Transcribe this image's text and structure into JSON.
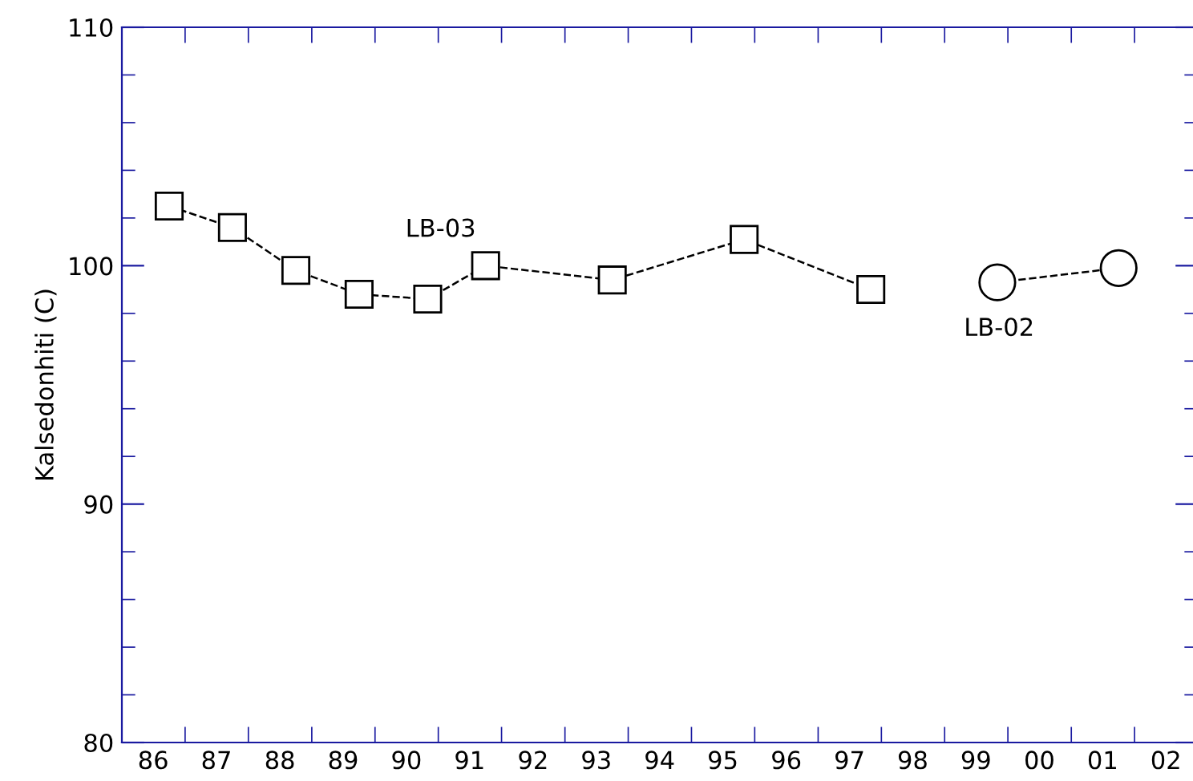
{
  "chart_data": {
    "type": "line",
    "ylabel": "Kalsedonhiti (C)",
    "series": [
      {
        "name": "LB-03",
        "color": "#000000",
        "marker": "square",
        "x": [
          "1986-10",
          "1987-10",
          "1988-10",
          "1989-10",
          "1990-11",
          "1991-10",
          "1993-10",
          "1995-11",
          "1997-11"
        ],
        "values": [
          102.5,
          101.6,
          99.8,
          98.8,
          98.6,
          100.0,
          99.4,
          101.1,
          99.0
        ]
      },
      {
        "name": "LB-02",
        "color": "#000000",
        "marker": "circle",
        "x": [
          "1999-11",
          "2001-10"
        ],
        "values": [
          99.3,
          99.9
        ]
      }
    ],
    "line_style": "dashed",
    "xlim": [
      "1986",
      "2003"
    ],
    "xticks": [
      {
        "value": "1986",
        "label": null
      },
      {
        "value": "1986-07",
        "label": "86"
      },
      {
        "value": "1987",
        "label": null
      },
      {
        "value": "1987-07",
        "label": "87"
      },
      {
        "value": "1988",
        "label": null
      },
      {
        "value": "1988-07",
        "label": "88"
      },
      {
        "value": "1989",
        "label": null
      },
      {
        "value": "1989-07",
        "label": "89"
      },
      {
        "value": "1990",
        "label": null
      },
      {
        "value": "1990-07",
        "label": "90"
      },
      {
        "value": "1991",
        "label": null
      },
      {
        "value": "1991-07",
        "label": "91"
      },
      {
        "value": "1992",
        "label": null
      },
      {
        "value": "1992-07",
        "label": "92"
      },
      {
        "value": "1993",
        "label": null
      },
      {
        "value": "1993-07",
        "label": "93"
      },
      {
        "value": "1994",
        "label": null
      },
      {
        "value": "1994-07",
        "label": "94"
      },
      {
        "value": "1995",
        "label": null
      },
      {
        "value": "1995-07",
        "label": "95"
      },
      {
        "value": "1996",
        "label": null
      },
      {
        "value": "1996-07",
        "label": "96"
      },
      {
        "value": "1997",
        "label": null
      },
      {
        "value": "1997-07",
        "label": "97"
      },
      {
        "value": "1998",
        "label": null
      },
      {
        "value": "1998-07",
        "label": "98"
      },
      {
        "value": "1999",
        "label": null
      },
      {
        "value": "1999-07",
        "label": "99"
      },
      {
        "value": "2000",
        "label": null
      },
      {
        "value": "2000-07",
        "label": "00"
      },
      {
        "value": "2001",
        "label": null
      },
      {
        "value": "2001-07",
        "label": "01"
      },
      {
        "value": "2002",
        "label": null
      },
      {
        "value": "2002-07",
        "label": "02"
      },
      {
        "value": "2003",
        "label": null
      }
    ],
    "ylim": [
      80,
      110
    ],
    "yticks": [
      80,
      {
        "value": 82,
        "label": null
      },
      {
        "value": 84,
        "label": null
      },
      {
        "value": 86,
        "label": null
      },
      {
        "value": 88,
        "label": null
      },
      90,
      {
        "value": 92,
        "label": null
      },
      {
        "value": 94,
        "label": null
      },
      {
        "value": 96,
        "label": null
      },
      {
        "value": 98,
        "label": null
      },
      100,
      {
        "value": 102,
        "label": null
      },
      {
        "value": 104,
        "label": null
      },
      {
        "value": 106,
        "label": null
      },
      {
        "value": 108,
        "label": null
      },
      110
    ],
    "grid": false,
    "legend": false
  }
}
